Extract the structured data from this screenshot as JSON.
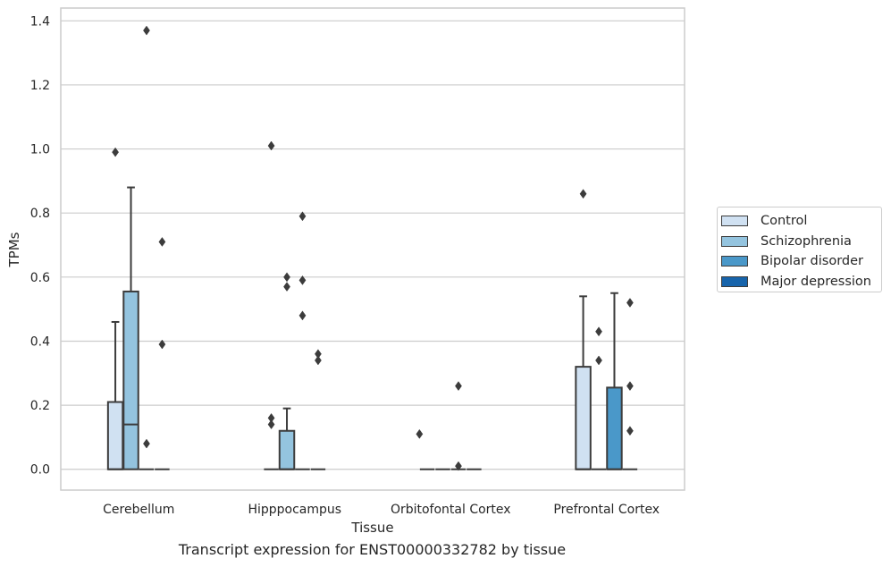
{
  "chart_data": {
    "type": "box",
    "caption": "Transcript expression for ENST00000332782 by tissue",
    "xlabel": "Tissue",
    "ylabel": "TPMs",
    "ylim": [
      -0.065,
      1.44
    ],
    "yticks": [
      0.0,
      0.2,
      0.4,
      0.6,
      0.8,
      1.0,
      1.2,
      1.4
    ],
    "ytick_labels": [
      "0.0",
      "0.2",
      "0.4",
      "0.6",
      "0.8",
      "1.0",
      "1.2",
      "1.4"
    ],
    "grid": "horizontal",
    "legend_position": "right",
    "categories": [
      "Cerebellum",
      "Hipppocampus",
      "Orbitofontal Cortex",
      "Prefrontal Cortex"
    ],
    "series": [
      {
        "name": "Control",
        "color": "#d0e1f2",
        "boxes": [
          {
            "q1": 0.0,
            "median": 0.0,
            "q3": 0.21,
            "whisker_low": 0.0,
            "whisker_high": 0.46,
            "outliers": [
              0.99
            ]
          },
          {
            "q1": 0.0,
            "median": 0.0,
            "q3": 0.0,
            "whisker_low": 0.0,
            "whisker_high": 0.0,
            "outliers": [
              0.14,
              0.16,
              1.01
            ]
          },
          {
            "q1": 0.0,
            "median": 0.0,
            "q3": 0.0,
            "whisker_low": 0.0,
            "whisker_high": 0.0,
            "outliers": []
          },
          {
            "q1": 0.0,
            "median": 0.0,
            "q3": 0.32,
            "whisker_low": 0.0,
            "whisker_high": 0.54,
            "outliers": [
              0.86
            ]
          }
        ]
      },
      {
        "name": "Schizophrenia",
        "color": "#94c4df",
        "boxes": [
          {
            "q1": 0.0,
            "median": 0.14,
            "q3": 0.555,
            "whisker_low": 0.0,
            "whisker_high": 0.88,
            "outliers": []
          },
          {
            "q1": 0.0,
            "median": 0.0,
            "q3": 0.12,
            "whisker_low": 0.0,
            "whisker_high": 0.19,
            "outliers": [
              0.57,
              0.6
            ]
          },
          {
            "q1": 0.0,
            "median": 0.0,
            "q3": 0.0,
            "whisker_low": 0.0,
            "whisker_high": 0.0,
            "outliers": []
          },
          {
            "q1": 0.0,
            "median": 0.0,
            "q3": 0.0,
            "whisker_low": 0.0,
            "whisker_high": 0.0,
            "outliers": [
              0.34,
              0.43
            ]
          }
        ]
      },
      {
        "name": "Bipolar disorder",
        "color": "#4a98c9",
        "boxes": [
          {
            "q1": 0.0,
            "median": 0.0,
            "q3": 0.0,
            "whisker_low": 0.0,
            "whisker_high": 0.0,
            "outliers": [
              0.08,
              1.37
            ]
          },
          {
            "q1": 0.0,
            "median": 0.0,
            "q3": 0.0,
            "whisker_low": 0.0,
            "whisker_high": 0.0,
            "outliers": [
              0.48,
              0.59,
              0.79
            ]
          },
          {
            "q1": 0.0,
            "median": 0.0,
            "q3": 0.0,
            "whisker_low": 0.0,
            "whisker_high": 0.0,
            "outliers": [
              0.01,
              0.26
            ]
          },
          {
            "q1": 0.0,
            "median": 0.0,
            "q3": 0.255,
            "whisker_low": 0.0,
            "whisker_high": 0.55,
            "outliers": []
          }
        ]
      },
      {
        "name": "Major depression",
        "color": "#1764ab",
        "boxes": [
          {
            "q1": 0.0,
            "median": 0.0,
            "q3": 0.0,
            "whisker_low": 0.0,
            "whisker_high": 0.0,
            "outliers": [
              0.39,
              0.71
            ]
          },
          {
            "q1": 0.0,
            "median": 0.0,
            "q3": 0.0,
            "whisker_low": 0.0,
            "whisker_high": 0.0,
            "outliers": [
              0.34,
              0.36
            ]
          },
          {
            "q1": 0.0,
            "median": 0.0,
            "q3": 0.0,
            "whisker_low": 0.0,
            "whisker_high": 0.0,
            "outliers": []
          },
          {
            "q1": 0.0,
            "median": 0.0,
            "q3": 0.0,
            "whisker_low": 0.0,
            "whisker_high": 0.0,
            "outliers": [
              0.12,
              0.26,
              0.52
            ]
          }
        ]
      }
    ],
    "extra_outliers": [
      {
        "category_index": 2,
        "x_offset": -0.5,
        "values": [
          0.11
        ]
      }
    ]
  }
}
